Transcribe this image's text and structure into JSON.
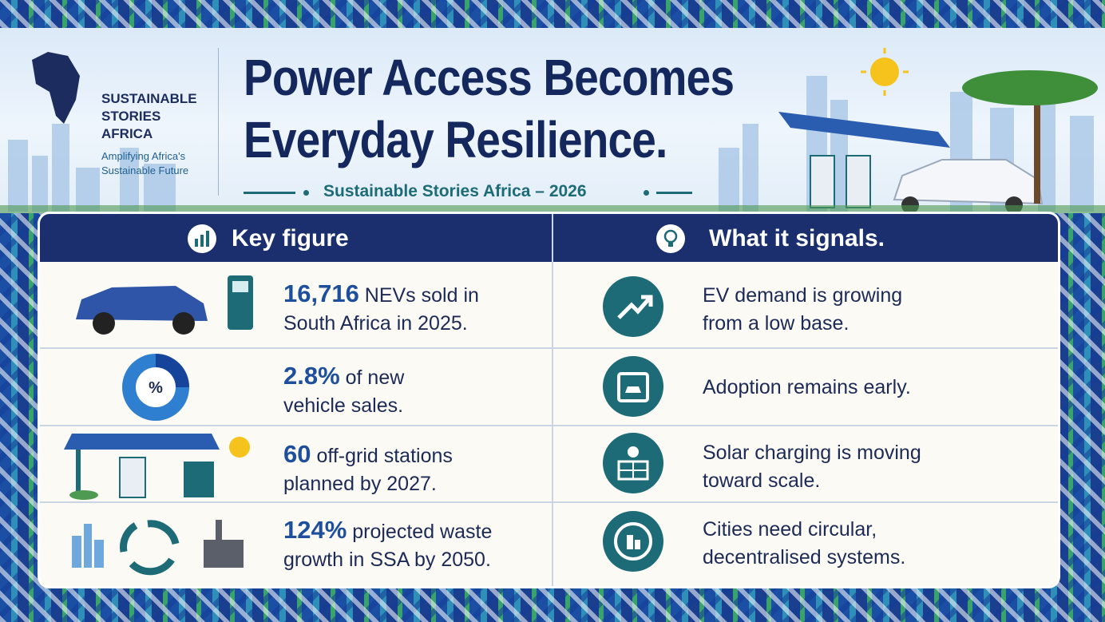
{
  "brand": {
    "name_lines": [
      "SUSTAINABLE",
      "STORIES",
      "AFRICA"
    ],
    "tagline_lines": [
      "Amplifying Africa's",
      "Sustainable Future"
    ]
  },
  "header": {
    "title_lines": [
      "Power Access Becomes",
      "Everyday Resilience."
    ],
    "subtitle": "Sustainable Stories Africa – 2026"
  },
  "table": {
    "columns": [
      "Key figure",
      "What it signals."
    ],
    "rows": [
      {
        "figure": "16,716",
        "text_lines": [
          "NEVs sold in",
          "South Africa in 2025."
        ],
        "signal_lines": [
          "EV demand is growing",
          "from a low base."
        ]
      },
      {
        "figure": "2.8%",
        "text_lines": [
          "of new",
          "vehicle sales."
        ],
        "signal_lines": [
          "Adoption remains early."
        ]
      },
      {
        "figure": "60",
        "text_lines": [
          "off-grid stations",
          "planned by 2027."
        ],
        "signal_lines": [
          "Solar charging is moving",
          "toward scale."
        ]
      },
      {
        "figure": "124%",
        "text_lines": [
          "projected waste",
          "growth in SSA by 2050."
        ],
        "signal_lines": [
          "Cities need circular,",
          "decentralised systems."
        ]
      }
    ]
  }
}
